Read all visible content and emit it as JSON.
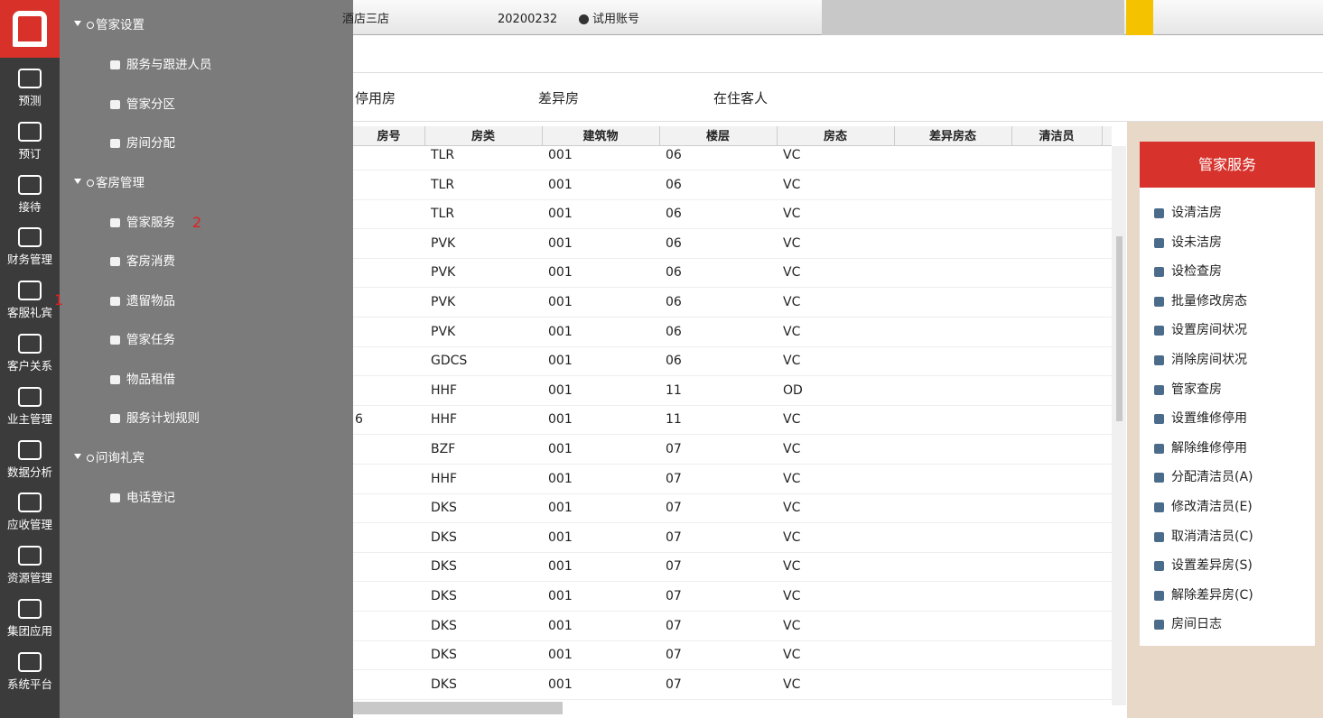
{
  "topbar": {
    "hotel": "酒店三店",
    "account": "20200232",
    "account_type": "试用账号"
  },
  "sidebar": [
    "预测",
    "预订",
    "接待",
    "财务管理",
    "客服礼宾",
    "客户关系",
    "业主管理",
    "数据分析",
    "应收管理",
    "资源管理",
    "集团应用",
    "系统平台"
  ],
  "annotations": [
    "1",
    "2"
  ],
  "menu": [
    {
      "title": "管家设置",
      "items": [
        "服务与跟进人员",
        "管家分区",
        "房间分配"
      ]
    },
    {
      "title": "客房管理",
      "items": [
        "管家服务",
        "客房消费",
        "遗留物品",
        "管家任务",
        "物品租借",
        "服务计划规则"
      ]
    },
    {
      "title": "问询礼宾",
      "items": [
        "电话登记"
      ]
    }
  ],
  "tabs": [
    "停用房",
    "差异房",
    "在住客人"
  ],
  "table": {
    "headers": [
      "房号",
      "房类",
      "建筑物",
      "楼层",
      "房态",
      "差异房态",
      "清洁员"
    ],
    "rows": [
      [
        null,
        "TLR",
        "001",
        "06",
        "VC"
      ],
      [
        null,
        "TLR",
        "001",
        "06",
        "VC"
      ],
      [
        null,
        "TLR",
        "001",
        "06",
        "VC"
      ],
      [
        null,
        "PVK",
        "001",
        "06",
        "VC"
      ],
      [
        null,
        "PVK",
        "001",
        "06",
        "VC"
      ],
      [
        null,
        "PVK",
        "001",
        "06",
        "VC"
      ],
      [
        null,
        "PVK",
        "001",
        "06",
        "VC"
      ],
      [
        null,
        "GDCS",
        "001",
        "06",
        "VC"
      ],
      [
        null,
        "HHF",
        "001",
        "11",
        "OD"
      ],
      [
        "6",
        "HHF",
        "001",
        "11",
        "VC"
      ],
      [
        null,
        "BZF",
        "001",
        "07",
        "VC"
      ],
      [
        null,
        "HHF",
        "001",
        "07",
        "VC"
      ],
      [
        null,
        "DKS",
        "001",
        "07",
        "VC"
      ],
      [
        null,
        "DKS",
        "001",
        "07",
        "VC"
      ],
      [
        null,
        "DKS",
        "001",
        "07",
        "VC"
      ],
      [
        null,
        "DKS",
        "001",
        "07",
        "VC"
      ],
      [
        null,
        "DKS",
        "001",
        "07",
        "VC"
      ],
      [
        null,
        "DKS",
        "001",
        "07",
        "VC"
      ],
      [
        null,
        "DKS",
        "001",
        "07",
        "VC"
      ]
    ]
  },
  "panel": {
    "title": "管家服务",
    "items": [
      "设清洁房",
      "设未洁房",
      "设检查房",
      "批量修改房态",
      "设置房间状况",
      "消除房间状况",
      "管家查房",
      "设置维修停用",
      "解除维修停用",
      "分配清洁员(A)",
      "修改清洁员(E)",
      "取消清洁员(C)",
      "设置差异房(S)",
      "解除差异房(C)",
      "房间日志"
    ]
  }
}
